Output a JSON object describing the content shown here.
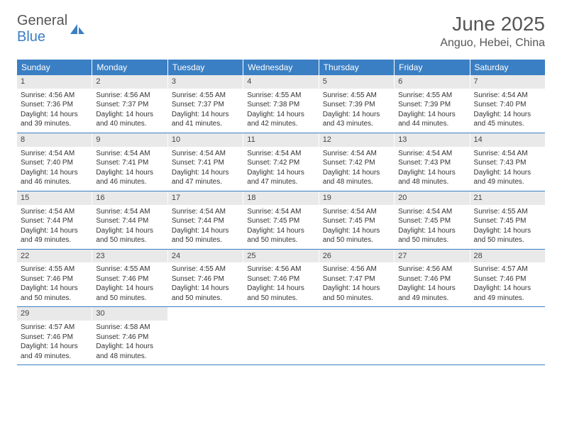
{
  "logo": {
    "general": "General",
    "blue": "Blue"
  },
  "title": "June 2025",
  "location": "Anguo, Hebei, China",
  "colors": {
    "header_bg": "#3a7fc4",
    "daynum_bg": "#e9e9e9",
    "text": "#333333",
    "title": "#555555",
    "border": "#3a7fc4"
  },
  "weekdays": [
    "Sunday",
    "Monday",
    "Tuesday",
    "Wednesday",
    "Thursday",
    "Friday",
    "Saturday"
  ],
  "days": [
    {
      "n": "1",
      "sunrise": "4:56 AM",
      "sunset": "7:36 PM",
      "dl": "14 hours and 39 minutes."
    },
    {
      "n": "2",
      "sunrise": "4:56 AM",
      "sunset": "7:37 PM",
      "dl": "14 hours and 40 minutes."
    },
    {
      "n": "3",
      "sunrise": "4:55 AM",
      "sunset": "7:37 PM",
      "dl": "14 hours and 41 minutes."
    },
    {
      "n": "4",
      "sunrise": "4:55 AM",
      "sunset": "7:38 PM",
      "dl": "14 hours and 42 minutes."
    },
    {
      "n": "5",
      "sunrise": "4:55 AM",
      "sunset": "7:39 PM",
      "dl": "14 hours and 43 minutes."
    },
    {
      "n": "6",
      "sunrise": "4:55 AM",
      "sunset": "7:39 PM",
      "dl": "14 hours and 44 minutes."
    },
    {
      "n": "7",
      "sunrise": "4:54 AM",
      "sunset": "7:40 PM",
      "dl": "14 hours and 45 minutes."
    },
    {
      "n": "8",
      "sunrise": "4:54 AM",
      "sunset": "7:40 PM",
      "dl": "14 hours and 46 minutes."
    },
    {
      "n": "9",
      "sunrise": "4:54 AM",
      "sunset": "7:41 PM",
      "dl": "14 hours and 46 minutes."
    },
    {
      "n": "10",
      "sunrise": "4:54 AM",
      "sunset": "7:41 PM",
      "dl": "14 hours and 47 minutes."
    },
    {
      "n": "11",
      "sunrise": "4:54 AM",
      "sunset": "7:42 PM",
      "dl": "14 hours and 47 minutes."
    },
    {
      "n": "12",
      "sunrise": "4:54 AM",
      "sunset": "7:42 PM",
      "dl": "14 hours and 48 minutes."
    },
    {
      "n": "13",
      "sunrise": "4:54 AM",
      "sunset": "7:43 PM",
      "dl": "14 hours and 48 minutes."
    },
    {
      "n": "14",
      "sunrise": "4:54 AM",
      "sunset": "7:43 PM",
      "dl": "14 hours and 49 minutes."
    },
    {
      "n": "15",
      "sunrise": "4:54 AM",
      "sunset": "7:44 PM",
      "dl": "14 hours and 49 minutes."
    },
    {
      "n": "16",
      "sunrise": "4:54 AM",
      "sunset": "7:44 PM",
      "dl": "14 hours and 50 minutes."
    },
    {
      "n": "17",
      "sunrise": "4:54 AM",
      "sunset": "7:44 PM",
      "dl": "14 hours and 50 minutes."
    },
    {
      "n": "18",
      "sunrise": "4:54 AM",
      "sunset": "7:45 PM",
      "dl": "14 hours and 50 minutes."
    },
    {
      "n": "19",
      "sunrise": "4:54 AM",
      "sunset": "7:45 PM",
      "dl": "14 hours and 50 minutes."
    },
    {
      "n": "20",
      "sunrise": "4:54 AM",
      "sunset": "7:45 PM",
      "dl": "14 hours and 50 minutes."
    },
    {
      "n": "21",
      "sunrise": "4:55 AM",
      "sunset": "7:45 PM",
      "dl": "14 hours and 50 minutes."
    },
    {
      "n": "22",
      "sunrise": "4:55 AM",
      "sunset": "7:46 PM",
      "dl": "14 hours and 50 minutes."
    },
    {
      "n": "23",
      "sunrise": "4:55 AM",
      "sunset": "7:46 PM",
      "dl": "14 hours and 50 minutes."
    },
    {
      "n": "24",
      "sunrise": "4:55 AM",
      "sunset": "7:46 PM",
      "dl": "14 hours and 50 minutes."
    },
    {
      "n": "25",
      "sunrise": "4:56 AM",
      "sunset": "7:46 PM",
      "dl": "14 hours and 50 minutes."
    },
    {
      "n": "26",
      "sunrise": "4:56 AM",
      "sunset": "7:47 PM",
      "dl": "14 hours and 50 minutes."
    },
    {
      "n": "27",
      "sunrise": "4:56 AM",
      "sunset": "7:46 PM",
      "dl": "14 hours and 49 minutes."
    },
    {
      "n": "28",
      "sunrise": "4:57 AM",
      "sunset": "7:46 PM",
      "dl": "14 hours and 49 minutes."
    },
    {
      "n": "29",
      "sunrise": "4:57 AM",
      "sunset": "7:46 PM",
      "dl": "14 hours and 49 minutes."
    },
    {
      "n": "30",
      "sunrise": "4:58 AM",
      "sunset": "7:46 PM",
      "dl": "14 hours and 48 minutes."
    }
  ],
  "labels": {
    "sunrise": "Sunrise:",
    "sunset": "Sunset:",
    "daylight": "Daylight:"
  }
}
